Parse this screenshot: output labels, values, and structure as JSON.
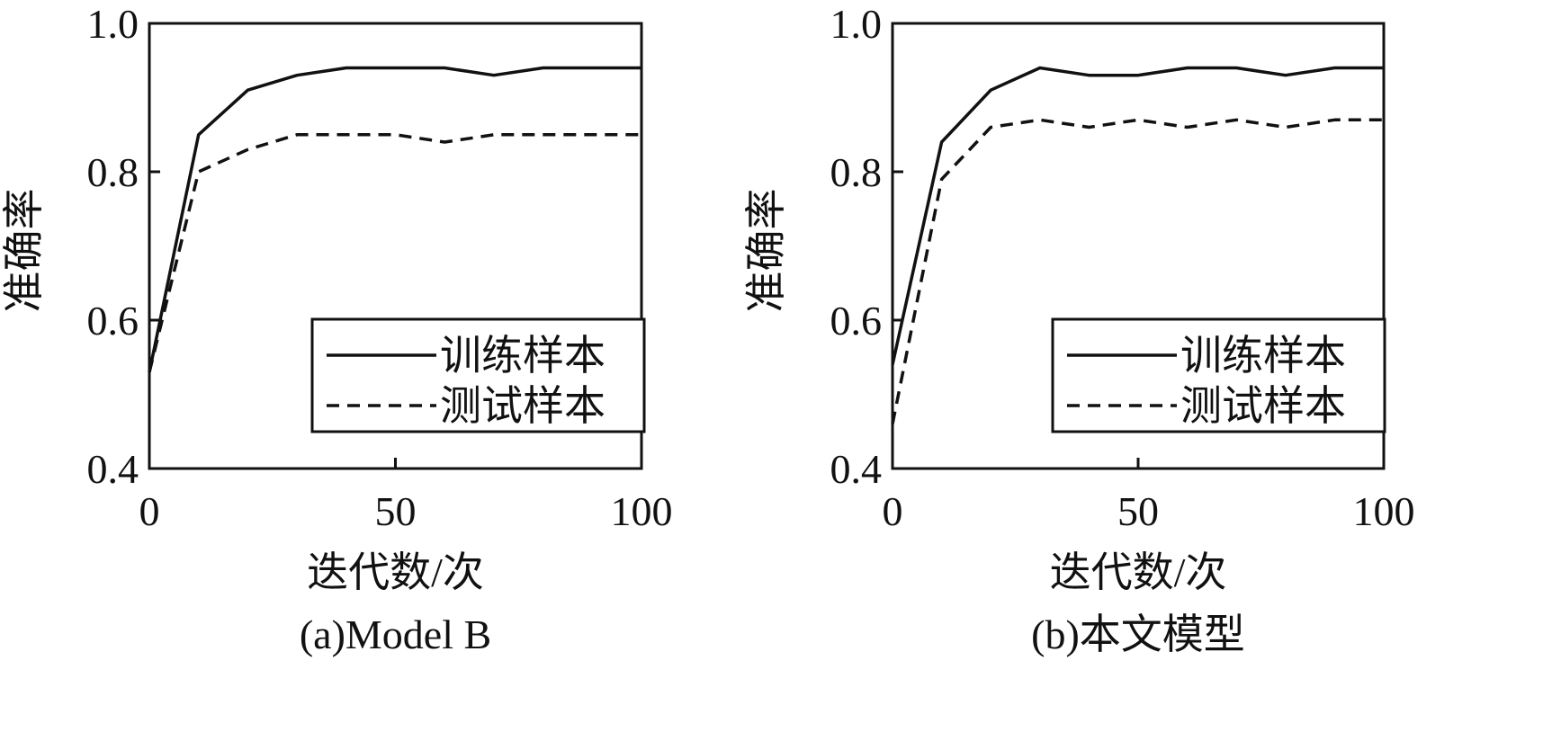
{
  "chart_data": [
    {
      "type": "line",
      "caption": "(a)Model B",
      "xlabel": "迭代数/次",
      "ylabel": "准确率",
      "xlim": [
        0,
        100
      ],
      "ylim": [
        0.4,
        1.0
      ],
      "xticks": [
        "0",
        "50",
        "100"
      ],
      "yticks": [
        "0.4",
        "0.6",
        "0.8",
        "1.0"
      ],
      "grid": false,
      "legend_position": "lower-right",
      "series": [
        {
          "name": "训练样本",
          "style": "solid",
          "x": [
            0,
            10,
            20,
            30,
            40,
            50,
            60,
            70,
            80,
            90,
            100
          ],
          "y": [
            0.53,
            0.85,
            0.91,
            0.93,
            0.94,
            0.94,
            0.94,
            0.93,
            0.94,
            0.94,
            0.94
          ]
        },
        {
          "name": "测试样本",
          "style": "dashed",
          "x": [
            0,
            10,
            20,
            30,
            40,
            50,
            60,
            70,
            80,
            90,
            100
          ],
          "y": [
            0.53,
            0.8,
            0.83,
            0.85,
            0.85,
            0.85,
            0.84,
            0.85,
            0.85,
            0.85,
            0.85
          ]
        }
      ]
    },
    {
      "type": "line",
      "caption": "(b)本文模型",
      "xlabel": "迭代数/次",
      "ylabel": "准确率",
      "xlim": [
        0,
        100
      ],
      "ylim": [
        0.4,
        1.0
      ],
      "xticks": [
        "0",
        "50",
        "100"
      ],
      "yticks": [
        "0.4",
        "0.6",
        "0.8",
        "1.0"
      ],
      "grid": false,
      "legend_position": "lower-right",
      "series": [
        {
          "name": "训练样本",
          "style": "solid",
          "x": [
            0,
            10,
            20,
            30,
            40,
            50,
            60,
            70,
            80,
            90,
            100
          ],
          "y": [
            0.54,
            0.84,
            0.91,
            0.94,
            0.93,
            0.93,
            0.94,
            0.94,
            0.93,
            0.94,
            0.94
          ]
        },
        {
          "name": "测试样本",
          "style": "dashed",
          "x": [
            0,
            10,
            20,
            30,
            40,
            50,
            60,
            70,
            80,
            90,
            100
          ],
          "y": [
            0.46,
            0.79,
            0.86,
            0.87,
            0.86,
            0.87,
            0.86,
            0.87,
            0.86,
            0.87,
            0.87
          ]
        }
      ]
    }
  ]
}
